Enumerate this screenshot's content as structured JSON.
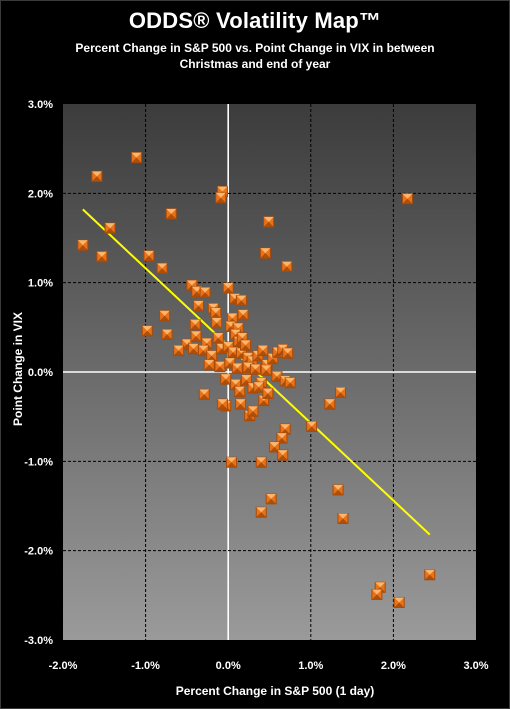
{
  "chart_data": {
    "type": "scatter",
    "title": "ODDS® Volatility Map™",
    "subtitle": "Percent Change in S&P 500 vs. Point Change in VIX in between Christmas and end of year",
    "xlabel": "Percent Change in S&P 500 (1 day)",
    "ylabel": "Point Change in VIX",
    "xlim": [
      -0.02,
      0.03
    ],
    "ylim": [
      -0.03,
      0.03
    ],
    "x_ticks": [
      -0.02,
      -0.01,
      0.0,
      0.01,
      0.02,
      0.03
    ],
    "y_ticks": [
      -0.03,
      -0.02,
      -0.01,
      0.0,
      0.01,
      0.02,
      0.03
    ],
    "x_tick_labels": [
      "-2.0%",
      "-1.0%",
      "0.0%",
      "1.0%",
      "2.0%",
      "3.0%"
    ],
    "y_tick_labels": [
      "-3.0%",
      "-2.0%",
      "-1.0%",
      "0.0%",
      "1.0%",
      "2.0%",
      "3.0%"
    ],
    "grid": true,
    "legend": "none",
    "colors": {
      "marker": "#e8731a",
      "marker_dark": "#a84a08",
      "marker_light": "#ffc27a",
      "trendline": "#ffff00",
      "gridline": "#000000",
      "zero_line": "#ffffff",
      "plot_top": "#3c3c3c",
      "plot_bottom": "#9a9a9a"
    },
    "points": [
      [
        -0.0111,
        0.024
      ],
      [
        -0.0159,
        0.0219
      ],
      [
        -0.0007,
        0.0202
      ],
      [
        0.0217,
        0.0194
      ],
      [
        -0.0009,
        0.0195
      ],
      [
        -0.0143,
        0.0161
      ],
      [
        -0.0069,
        0.0177
      ],
      [
        0.0049,
        0.0168
      ],
      [
        -0.0176,
        0.0142
      ],
      [
        -0.0153,
        0.0129
      ],
      [
        -0.0096,
        0.013
      ],
      [
        0.0045,
        0.0133
      ],
      [
        -0.008,
        0.0116
      ],
      [
        0.0071,
        0.0118
      ],
      [
        -0.0044,
        0.0097
      ],
      [
        -0.0038,
        0.009
      ],
      [
        -0.0028,
        0.0089
      ],
      [
        0.0,
        0.0094
      ],
      [
        0.0008,
        0.0082
      ],
      [
        0.0016,
        0.008
      ],
      [
        -0.0036,
        0.0074
      ],
      [
        -0.0018,
        0.0071
      ],
      [
        -0.0015,
        0.0066
      ],
      [
        -0.0077,
        0.0063
      ],
      [
        -0.0098,
        0.0046
      ],
      [
        -0.0074,
        0.0042
      ],
      [
        -0.004,
        0.0053
      ],
      [
        -0.0014,
        0.0055
      ],
      [
        0.0005,
        0.006
      ],
      [
        0.0018,
        0.0064
      ],
      [
        0.0003,
        0.0051
      ],
      [
        0.0012,
        0.0049
      ],
      [
        -0.005,
        0.0031
      ],
      [
        -0.0039,
        0.004
      ],
      [
        -0.0042,
        0.0026
      ],
      [
        -0.0026,
        0.0032
      ],
      [
        -0.0012,
        0.0038
      ],
      [
        0.0009,
        0.0042
      ],
      [
        0.0013,
        0.0034
      ],
      [
        0.0017,
        0.0038
      ],
      [
        -0.006,
        0.0024
      ],
      [
        -0.003,
        0.0024
      ],
      [
        -0.002,
        0.0018
      ],
      [
        -0.0008,
        0.0026
      ],
      [
        0.0,
        0.0028
      ],
      [
        0.0006,
        0.0022
      ],
      [
        0.0016,
        0.0021
      ],
      [
        0.0021,
        0.003
      ],
      [
        0.0024,
        0.0016
      ],
      [
        0.0029,
        0.0012
      ],
      [
        0.0036,
        0.0018
      ],
      [
        0.0042,
        0.0024
      ],
      [
        0.0047,
        0.0008
      ],
      [
        0.0054,
        0.0015
      ],
      [
        0.006,
        0.0022
      ],
      [
        0.0066,
        0.0025
      ],
      [
        0.0072,
        0.0021
      ],
      [
        -0.0023,
        0.0008
      ],
      [
        -0.001,
        0.0006
      ],
      [
        0.0002,
        0.001
      ],
      [
        0.0011,
        0.0004
      ],
      [
        0.0024,
        0.0005
      ],
      [
        0.0033,
        0.0003
      ],
      [
        0.0046,
        0.0002
      ],
      [
        0.0059,
        -0.0005
      ],
      [
        0.0069,
        -0.001
      ],
      [
        0.0075,
        -0.0012
      ],
      [
        -0.0003,
        -0.0008
      ],
      [
        0.0009,
        -0.0014
      ],
      [
        0.0022,
        -0.0009
      ],
      [
        0.003,
        -0.0018
      ],
      [
        0.004,
        -0.0012
      ],
      [
        -0.0029,
        -0.0025
      ],
      [
        0.0014,
        -0.0022
      ],
      [
        0.0037,
        -0.0017
      ],
      [
        0.0043,
        -0.0032
      ],
      [
        -0.0003,
        -0.0038
      ],
      [
        -0.0007,
        -0.0036
      ],
      [
        0.0015,
        -0.0036
      ],
      [
        0.0048,
        -0.0024
      ],
      [
        0.0026,
        -0.0049
      ],
      [
        0.003,
        -0.0044
      ],
      [
        0.0069,
        -0.0064
      ],
      [
        0.0065,
        -0.0074
      ],
      [
        0.0101,
        -0.0061
      ],
      [
        0.0123,
        -0.0036
      ],
      [
        0.0136,
        -0.0023
      ],
      [
        0.0056,
        -0.0084
      ],
      [
        0.0066,
        -0.0093
      ],
      [
        0.0004,
        -0.0101
      ],
      [
        0.004,
        -0.0101
      ],
      [
        0.0133,
        -0.0132
      ],
      [
        0.0052,
        -0.0142
      ],
      [
        0.004,
        -0.0157
      ],
      [
        0.0139,
        -0.0164
      ],
      [
        0.0184,
        -0.0241
      ],
      [
        0.018,
        -0.0249
      ],
      [
        0.0207,
        -0.0258
      ],
      [
        0.0244,
        -0.0227
      ]
    ],
    "trendline": {
      "type": "linear",
      "x_range": [
        -0.0176,
        0.0244
      ],
      "y_start": 0.0182,
      "y_end": -0.0182
    }
  }
}
